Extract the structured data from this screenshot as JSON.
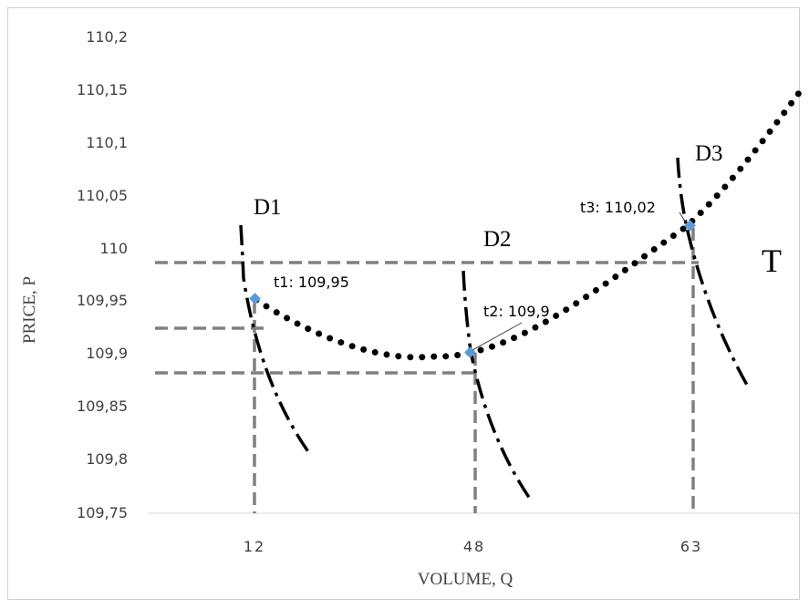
{
  "chart_data": {
    "type": "line",
    "xlabel": "VOLUME, Q",
    "ylabel": "PRICE, P",
    "ylim": [
      109.75,
      110.2
    ],
    "y_ticks": [
      "110,2",
      "110,15",
      "110,1",
      "110,05",
      "110",
      "109,95",
      "109,9",
      "109,85",
      "109,8",
      "109,75"
    ],
    "x_ticks": [
      "12",
      "48",
      "63"
    ],
    "grid": false,
    "series": [
      {
        "name": "T",
        "style": "dotted",
        "x": [
          12,
          20,
          28,
          35,
          42,
          48,
          53,
          58,
          63,
          67,
          70
        ],
        "y": [
          109.952,
          109.925,
          109.906,
          109.897,
          109.897,
          109.9,
          109.93,
          109.97,
          110.02,
          110.09,
          110.145
        ]
      },
      {
        "name": "D1",
        "style": "dash-dot"
      },
      {
        "name": "D2",
        "style": "dash-dot"
      },
      {
        "name": "D3",
        "style": "dash-dot"
      }
    ],
    "points": [
      {
        "label": "t1: 109,95",
        "x": 12,
        "y": 109.95
      },
      {
        "label": "t2: 109,9",
        "x": 48,
        "y": 109.9
      },
      {
        "label": "t3: 110,02",
        "x": 63,
        "y": 110.02
      }
    ],
    "reference_lines_y": [
      109.985,
      109.923,
      109.881
    ],
    "colors": {
      "marker": "#5b9bd5",
      "guide": "#808080",
      "curve": "#000000",
      "axis_text": "#404040"
    }
  }
}
